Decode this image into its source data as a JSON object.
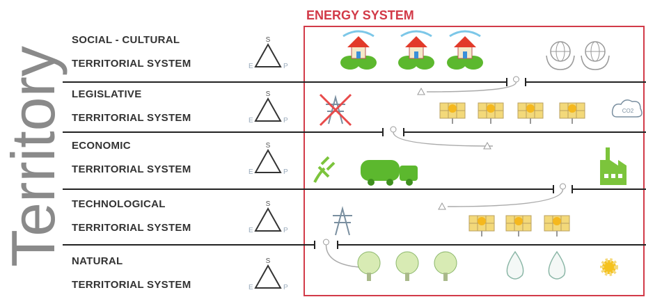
{
  "title": "Territory",
  "box_title": "ENERGY SYSTEM",
  "rows": [
    {
      "lines": [
        "SOCIAL - CULTURAL",
        "TERRITORIAL SYSTEM"
      ],
      "triangle": {
        "top": "S",
        "left": "E",
        "right": "P"
      }
    },
    {
      "lines": [
        "LEGISLATIVE",
        "TERRITORIAL SYSTEM"
      ],
      "triangle": {
        "top": "S",
        "left": "E",
        "right": "P"
      }
    },
    {
      "lines": [
        "ECONOMIC",
        "TERRITORIAL SYSTEM"
      ],
      "triangle": {
        "top": "S",
        "left": "E",
        "right": "P"
      }
    },
    {
      "lines": [
        "TECHNOLOGICAL",
        "TERRITORIAL SYSTEM"
      ],
      "triangle": {
        "top": "S",
        "left": "E",
        "right": "P"
      }
    },
    {
      "lines": [
        "NATURAL",
        "TERRITORIAL SYSTEM"
      ],
      "triangle": {
        "top": "S",
        "left": "E",
        "right": "P"
      }
    }
  ],
  "icons": {
    "co2": "CO2"
  }
}
